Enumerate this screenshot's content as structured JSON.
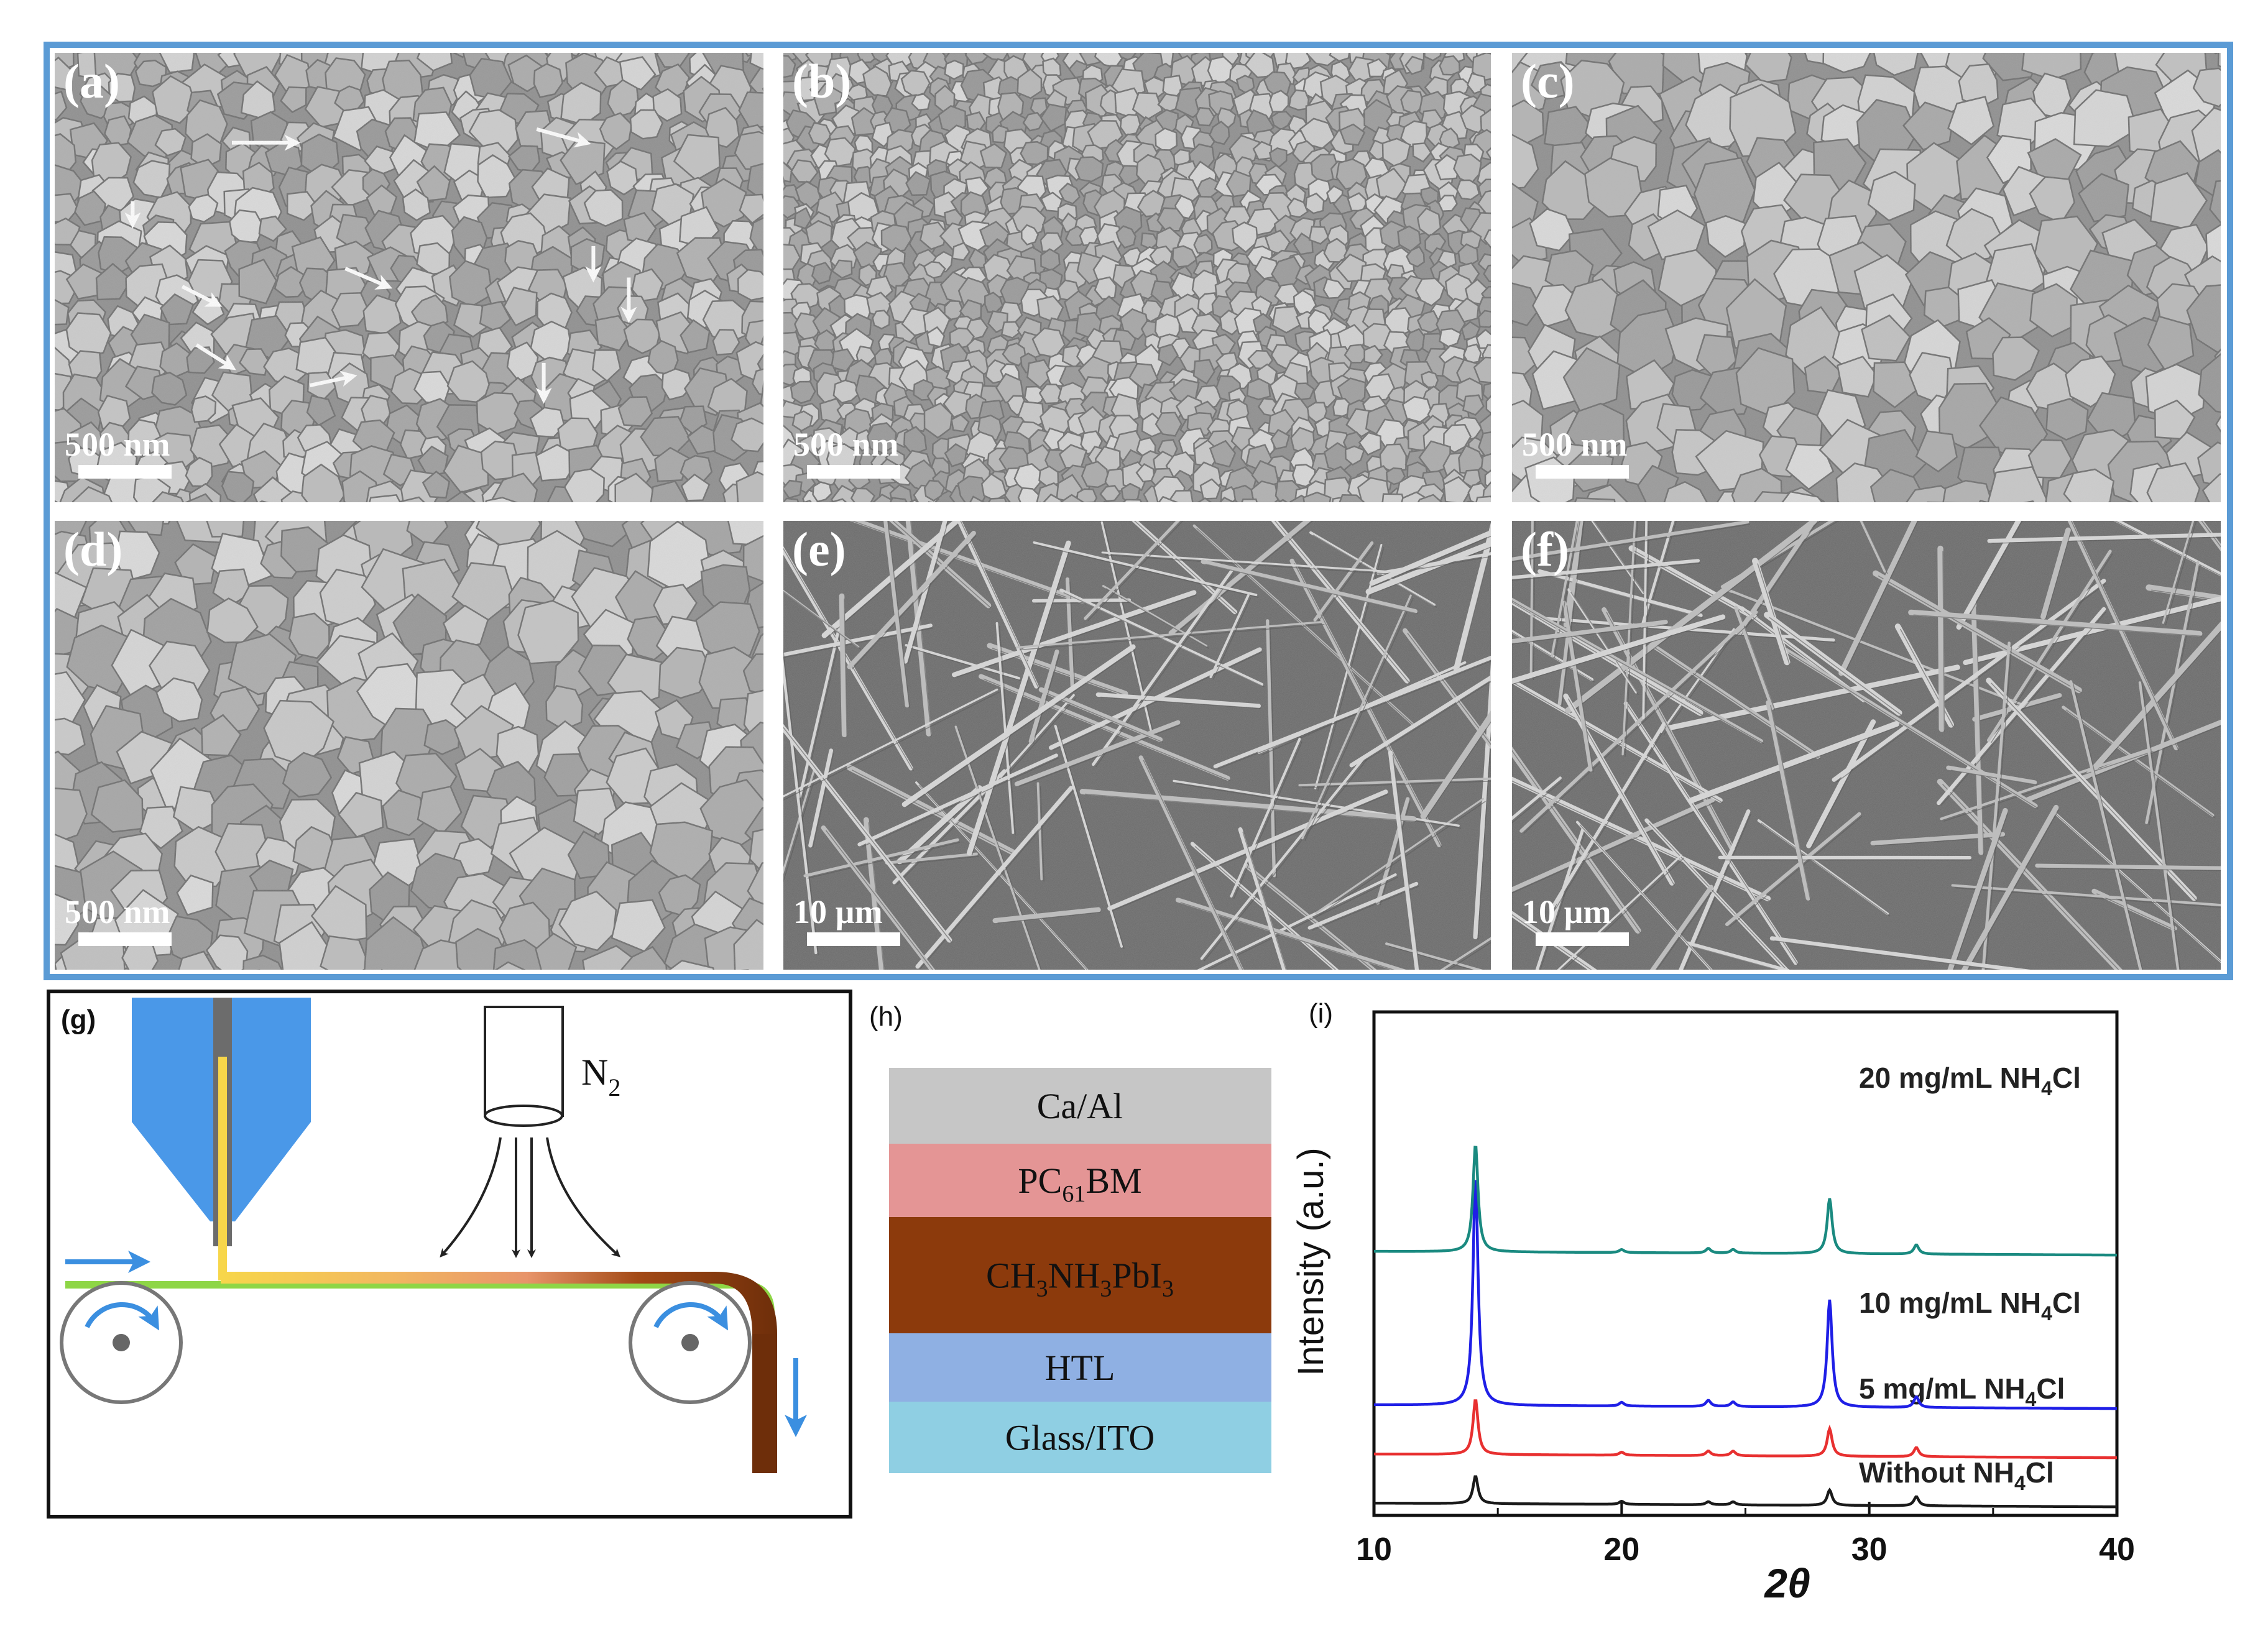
{
  "sem_panels": [
    {
      "label": "(a)",
      "scale": "500 nm",
      "texture": "grains",
      "seed": 11,
      "cracks": true
    },
    {
      "label": "(b)",
      "scale": "500 nm",
      "texture": "grains-fine",
      "seed": 23,
      "cracks": false
    },
    {
      "label": "(c)",
      "scale": "500 nm",
      "texture": "grains-large",
      "seed": 37,
      "cracks": false
    },
    {
      "label": "(d)",
      "scale": "500 nm",
      "texture": "grains-large",
      "seed": 41,
      "cracks": false
    },
    {
      "label": "(e)",
      "scale": "10 µm",
      "texture": "needles",
      "seed": 53,
      "cracks": false
    },
    {
      "label": "(f)",
      "scale": "10 µm",
      "texture": "needles",
      "seed": 67,
      "cracks": false
    }
  ],
  "panel_g": {
    "label": "(g)",
    "gas": "N",
    "gas_sub": "2"
  },
  "panel_h": {
    "label": "(h)",
    "layers": [
      {
        "parts": [
          {
            "t": "Ca/Al"
          }
        ],
        "color": "#c6c6c6"
      },
      {
        "parts": [
          {
            "t": "PC"
          },
          {
            "t": "61",
            "sub": true
          },
          {
            "t": "BM"
          }
        ],
        "color": "#e49595"
      },
      {
        "parts": [
          {
            "t": "CH"
          },
          {
            "t": "3",
            "sub": true
          },
          {
            "t": "NH"
          },
          {
            "t": "3",
            "sub": true
          },
          {
            "t": "PbI"
          },
          {
            "t": "3",
            "sub": true
          }
        ],
        "color": "#8c3a0c"
      },
      {
        "parts": [
          {
            "t": "HTL"
          }
        ],
        "color": "#8fb0e3"
      },
      {
        "parts": [
          {
            "t": "Glass/ITO"
          }
        ],
        "color": "#8fcfe3"
      }
    ]
  },
  "chart_data": {
    "type": "line",
    "panel_label": "(i)",
    "xlabel": "2θ",
    "ylabel": "Intensity (a.u.)",
    "xlim": [
      10,
      40
    ],
    "xticks": [
      10,
      20,
      30,
      40
    ],
    "series": [
      {
        "name": "Without NH4Cl",
        "name_parts": [
          {
            "t": "Without NH"
          },
          {
            "t": "4",
            "sub": true
          },
          {
            "t": "Cl"
          }
        ],
        "color": "#1a1a1a",
        "baseline": 0.0,
        "x": [
          14.1,
          20.0,
          23.5,
          24.5,
          28.4,
          31.9
        ],
        "y": [
          0.9,
          0.1,
          0.1,
          0.1,
          0.5,
          0.3
        ]
      },
      {
        "name": "5 mg/mL NH4Cl",
        "name_parts": [
          {
            "t": "5 mg/mL NH"
          },
          {
            "t": "4",
            "sub": true
          },
          {
            "t": "Cl"
          }
        ],
        "color": "#e83030",
        "baseline": 1.6,
        "x": [
          14.1,
          20.0,
          23.5,
          24.5,
          28.4,
          31.9
        ],
        "y": [
          1.8,
          0.1,
          0.15,
          0.15,
          0.9,
          0.3
        ]
      },
      {
        "name": "10 mg/mL NH4Cl",
        "name_parts": [
          {
            "t": "10 mg/mL NH"
          },
          {
            "t": "4",
            "sub": true
          },
          {
            "t": "Cl"
          }
        ],
        "color": "#1f1fe6",
        "baseline": 3.2,
        "x": [
          14.1,
          20.0,
          23.5,
          24.5,
          28.4,
          31.9
        ],
        "y": [
          7.5,
          0.12,
          0.2,
          0.15,
          3.5,
          0.35
        ]
      },
      {
        "name": "20 mg/mL NH4Cl",
        "name_parts": [
          {
            "t": "20 mg/mL NH"
          },
          {
            "t": "4",
            "sub": true
          },
          {
            "t": "Cl"
          }
        ],
        "color": "#1a8a80",
        "baseline": 8.2,
        "x": [
          14.1,
          20.0,
          23.5,
          24.5,
          28.4,
          31.9
        ],
        "y": [
          3.5,
          0.1,
          0.15,
          0.12,
          1.8,
          0.3
        ]
      }
    ]
  }
}
